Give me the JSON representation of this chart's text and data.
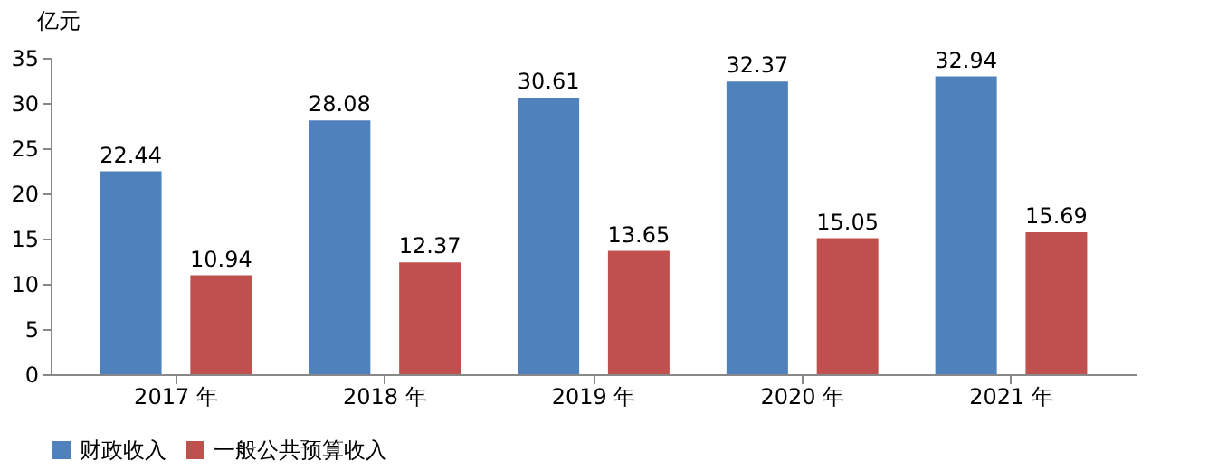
{
  "chart_data": {
    "type": "bar",
    "ylabel": "亿元",
    "categories": [
      "2017 年",
      "2018 年",
      "2019 年",
      "2020 年",
      "2021 年"
    ],
    "series": [
      {
        "name": "财政收入",
        "color": "#4f81bd",
        "values": [
          22.44,
          28.08,
          30.61,
          32.37,
          32.94
        ]
      },
      {
        "name": "一般公共预算收入",
        "color": "#c0504d",
        "values": [
          10.94,
          12.37,
          13.65,
          15.05,
          15.69
        ]
      }
    ],
    "ylim": [
      0,
      35
    ],
    "yticks": [
      0,
      5,
      10,
      15,
      20,
      25,
      30,
      35
    ],
    "grid": false,
    "legend": "bottom",
    "data_labels": true
  }
}
